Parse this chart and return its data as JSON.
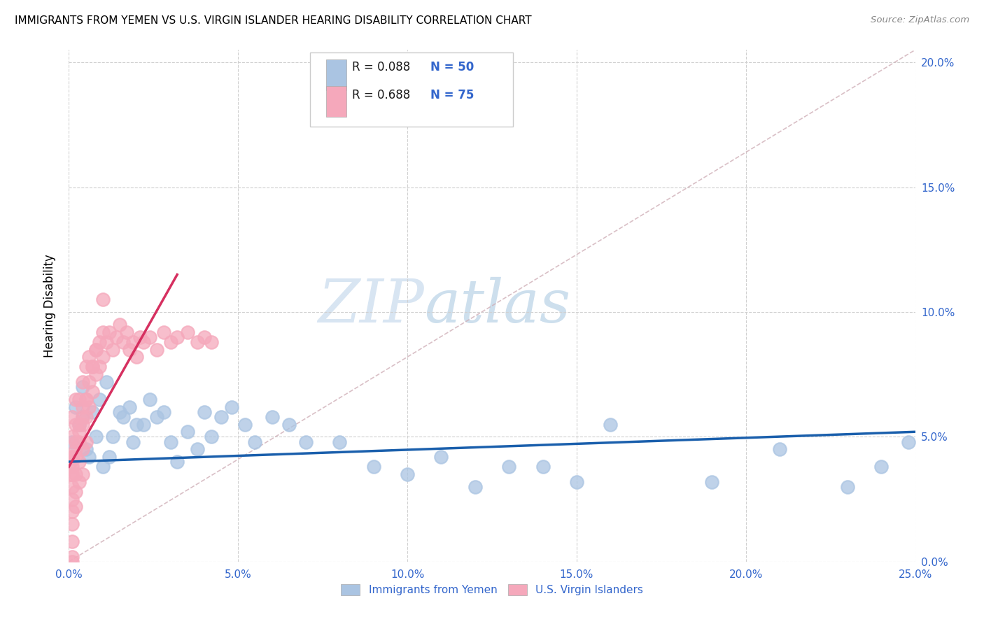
{
  "title": "IMMIGRANTS FROM YEMEN VS U.S. VIRGIN ISLANDER HEARING DISABILITY CORRELATION CHART",
  "source": "Source: ZipAtlas.com",
  "ylabel": "Hearing Disability",
  "legend_label_blue": "Immigrants from Yemen",
  "legend_label_pink": "U.S. Virgin Islanders",
  "watermark_zip": "ZIP",
  "watermark_atlas": "atlas",
  "blue_color": "#aac4e2",
  "pink_color": "#f5a8bb",
  "blue_line_color": "#1a5fac",
  "pink_line_color": "#d63060",
  "dashed_line_color": "#d0b0b8",
  "grid_color": "#d0d0d0",
  "tick_color": "#3366cc",
  "xlim": [
    0.0,
    0.25
  ],
  "ylim": [
    0.0,
    0.205
  ],
  "x_ticks": [
    0.0,
    0.05,
    0.1,
    0.15,
    0.2,
    0.25
  ],
  "y_ticks": [
    0.0,
    0.05,
    0.1,
    0.15,
    0.2
  ],
  "blue_line_x0": 0.0,
  "blue_line_x1": 0.25,
  "blue_line_y0": 0.04,
  "blue_line_y1": 0.052,
  "pink_line_x0": 0.0,
  "pink_line_x1": 0.032,
  "pink_line_y0": 0.038,
  "pink_line_y1": 0.115,
  "dashed_line_x0": 0.0,
  "dashed_line_x1": 0.25,
  "dashed_line_y0": 0.0,
  "dashed_line_y1": 0.205,
  "blue_x": [
    0.001,
    0.002,
    0.003,
    0.004,
    0.004,
    0.005,
    0.006,
    0.007,
    0.008,
    0.009,
    0.01,
    0.011,
    0.012,
    0.013,
    0.015,
    0.016,
    0.018,
    0.019,
    0.02,
    0.022,
    0.024,
    0.026,
    0.028,
    0.03,
    0.032,
    0.035,
    0.038,
    0.04,
    0.042,
    0.045,
    0.048,
    0.052,
    0.055,
    0.06,
    0.065,
    0.07,
    0.08,
    0.09,
    0.1,
    0.11,
    0.12,
    0.13,
    0.14,
    0.15,
    0.16,
    0.19,
    0.21,
    0.23,
    0.24,
    0.248
  ],
  "blue_y": [
    0.048,
    0.062,
    0.055,
    0.058,
    0.07,
    0.045,
    0.042,
    0.06,
    0.05,
    0.065,
    0.038,
    0.072,
    0.042,
    0.05,
    0.06,
    0.058,
    0.062,
    0.048,
    0.055,
    0.055,
    0.065,
    0.058,
    0.06,
    0.048,
    0.04,
    0.052,
    0.045,
    0.06,
    0.05,
    0.058,
    0.062,
    0.055,
    0.048,
    0.058,
    0.055,
    0.048,
    0.048,
    0.038,
    0.035,
    0.042,
    0.03,
    0.038,
    0.038,
    0.032,
    0.055,
    0.032,
    0.045,
    0.03,
    0.038,
    0.048
  ],
  "pink_x": [
    0.0005,
    0.0008,
    0.001,
    0.001,
    0.001,
    0.001,
    0.001,
    0.001,
    0.002,
    0.002,
    0.002,
    0.002,
    0.002,
    0.003,
    0.003,
    0.003,
    0.003,
    0.004,
    0.004,
    0.004,
    0.004,
    0.005,
    0.005,
    0.005,
    0.006,
    0.006,
    0.007,
    0.007,
    0.008,
    0.008,
    0.009,
    0.009,
    0.01,
    0.01,
    0.011,
    0.012,
    0.013,
    0.014,
    0.015,
    0.016,
    0.017,
    0.018,
    0.019,
    0.02,
    0.021,
    0.022,
    0.024,
    0.026,
    0.028,
    0.03,
    0.032,
    0.035,
    0.038,
    0.04,
    0.042,
    0.001,
    0.001,
    0.001,
    0.001,
    0.001,
    0.001,
    0.001,
    0.002,
    0.002,
    0.002,
    0.003,
    0.003,
    0.004,
    0.004,
    0.005,
    0.005,
    0.006,
    0.007,
    0.008,
    0.01
  ],
  "pink_y": [
    0.04,
    0.035,
    0.042,
    0.038,
    0.03,
    0.025,
    0.02,
    0.015,
    0.048,
    0.042,
    0.035,
    0.028,
    0.022,
    0.055,
    0.048,
    0.04,
    0.032,
    0.062,
    0.055,
    0.045,
    0.035,
    0.065,
    0.058,
    0.048,
    0.072,
    0.062,
    0.078,
    0.068,
    0.085,
    0.075,
    0.088,
    0.078,
    0.092,
    0.082,
    0.088,
    0.092,
    0.085,
    0.09,
    0.095,
    0.088,
    0.092,
    0.085,
    0.088,
    0.082,
    0.09,
    0.088,
    0.09,
    0.085,
    0.092,
    0.088,
    0.09,
    0.092,
    0.088,
    0.09,
    0.088,
    0.058,
    0.05,
    0.042,
    0.035,
    0.008,
    0.002,
    0.0,
    0.065,
    0.055,
    0.045,
    0.065,
    0.052,
    0.072,
    0.058,
    0.078,
    0.065,
    0.082,
    0.078,
    0.085,
    0.105
  ]
}
